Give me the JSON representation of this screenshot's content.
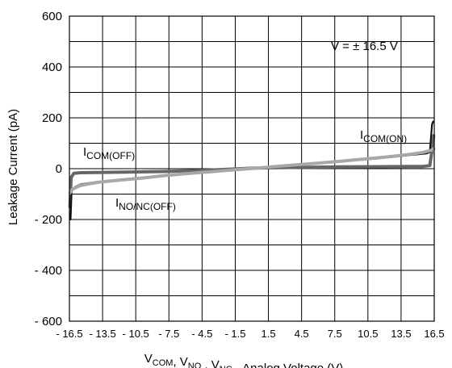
{
  "chart_data": {
    "type": "line",
    "title": "",
    "ylabel": "Leakage Current (pA)",
    "xlabel": {
      "parts": [
        {
          "text": "V",
          "sub": "COM"
        },
        {
          "text": ", V",
          "sub": "NO"
        },
        {
          "text": " , V",
          "sub": "NC"
        },
        {
          "text": " - Analog Voltage (V)",
          "sub": ""
        }
      ]
    },
    "annotation": "V = ± 16.5 V",
    "xlim": [
      -16.5,
      16.5
    ],
    "ylim": [
      -600,
      600
    ],
    "x_ticks": [
      -16.5,
      -13.5,
      -10.5,
      -7.5,
      -4.5,
      -1.5,
      1.5,
      4.5,
      7.5,
      10.5,
      13.5,
      16.5
    ],
    "x_tick_labels": [
      "- 16.5",
      "- 13.5",
      "- 10.5",
      "- 7.5",
      "- 4.5",
      "- 1.5",
      "1.5",
      "4.5",
      "7.5",
      "10.5",
      "13.5",
      "16.5"
    ],
    "y_ticks": [
      -600,
      -400,
      -200,
      0,
      200,
      400,
      600
    ],
    "y_tick_labels": [
      "- 600",
      "- 400",
      "- 200",
      "0",
      "200",
      "400",
      "600"
    ],
    "grid": true,
    "series": [
      {
        "name": "I_NO/NC(OFF)",
        "label_main": "I",
        "label_sub": "NO/NC(OFF)",
        "color": "#111111",
        "x": [
          -16.4,
          -16.3,
          -16.0,
          -15.5,
          -14.0,
          -12.0,
          -10.0,
          -8.0,
          -6.0,
          -4.0,
          -2.0,
          0.0,
          2.0,
          4.0,
          6.0,
          8.0,
          10.0,
          12.0,
          14.0,
          15.8,
          16.1,
          16.3,
          16.4
        ],
        "y": [
          -200,
          -90,
          -72,
          -62,
          -52,
          -43,
          -35,
          -27,
          -20,
          -13,
          -6,
          0,
          7,
          14,
          21,
          28,
          35,
          43,
          52,
          60,
          65,
          175,
          185
        ]
      },
      {
        "name": "I_COM(OFF)",
        "label_main": "I",
        "label_sub": "COM(OFF)",
        "color": "#666666",
        "x": [
          -16.45,
          -16.35,
          -16.1,
          -15.5,
          -12.0,
          -8.0,
          -4.0,
          0.0,
          4.0,
          8.0,
          12.0,
          15.5,
          16.1,
          16.35,
          16.45
        ],
        "y": [
          -150,
          -35,
          -18,
          -16,
          -14,
          -11,
          -6,
          2,
          5,
          7,
          8,
          9,
          12,
          85,
          130
        ]
      },
      {
        "name": "I_COM(ON)",
        "label_main": "I",
        "label_sub": "COM(ON)",
        "color": "#a8a8a8",
        "x": [
          -16.45,
          -16.2,
          -15.5,
          -14.0,
          -12.0,
          -10.0,
          -8.0,
          -6.0,
          -4.0,
          -2.0,
          0.0,
          2.0,
          4.0,
          6.0,
          8.0,
          10.0,
          12.0,
          14.0,
          15.5,
          16.2,
          16.45
        ],
        "y": [
          -95,
          -80,
          -66,
          -54,
          -45,
          -37,
          -28,
          -20,
          -13,
          -6,
          1,
          8,
          15,
          22,
          29,
          37,
          45,
          55,
          64,
          72,
          78
        ]
      }
    ]
  }
}
